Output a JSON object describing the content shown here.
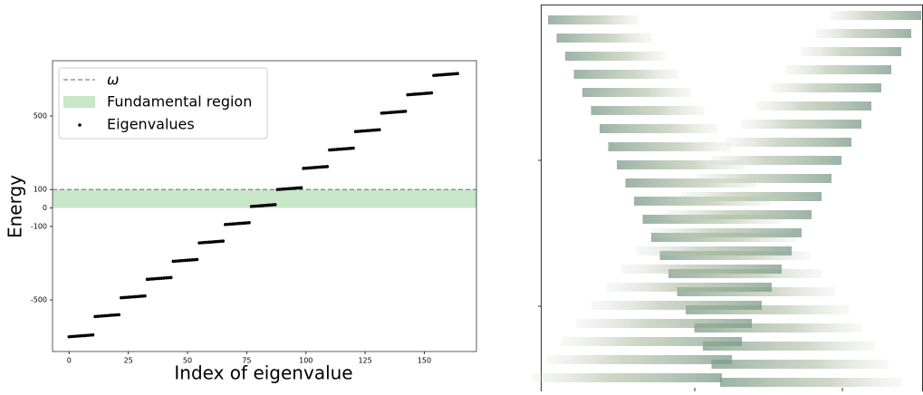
{
  "chart_data": {
    "type": "scatter",
    "xlabel": "Index of eigenvalue",
    "ylabel": "Energy",
    "x": [
      0,
      1,
      2,
      3,
      4,
      5,
      6,
      7,
      8,
      9,
      10,
      11,
      12,
      13,
      14,
      15,
      16,
      17,
      18,
      19,
      20,
      21,
      22,
      23,
      24,
      25,
      26,
      27,
      28,
      29,
      30,
      31,
      32,
      33,
      34,
      35,
      36,
      37,
      38,
      39,
      40,
      41,
      42,
      43,
      44,
      45,
      46,
      47,
      48,
      49,
      50,
      51,
      52,
      53,
      54,
      55,
      56,
      57,
      58,
      59,
      60,
      61,
      62,
      63,
      64,
      65,
      66,
      67,
      68,
      69,
      70,
      71,
      72,
      73,
      74,
      75,
      76,
      77,
      78,
      79,
      80,
      81,
      82,
      83,
      84,
      85,
      86,
      87,
      88,
      89,
      90,
      91,
      92,
      93,
      94,
      95,
      96,
      97,
      98,
      99,
      100,
      101,
      102,
      103,
      104,
      105,
      106,
      107,
      108,
      109,
      110,
      111,
      112,
      113,
      114,
      115,
      116,
      117,
      118,
      119,
      120,
      121,
      122,
      123,
      124,
      125,
      126,
      127,
      128,
      129,
      130,
      131,
      132,
      133,
      134,
      135,
      136,
      137,
      138,
      139,
      140,
      141,
      142,
      143,
      144,
      145,
      146,
      147,
      148,
      149,
      150,
      151,
      152,
      153,
      154,
      155,
      156,
      157,
      158,
      159,
      160,
      161,
      162,
      163,
      164
    ],
    "series": [
      {
        "name": "Eigenvalues",
        "color": "#000000",
        "values": [
          -700,
          -699,
          -698,
          -697,
          -696,
          -695,
          -694,
          -693,
          -692,
          -691,
          -690,
          -590,
          -589,
          -588,
          -587,
          -586,
          -585,
          -584,
          -583,
          -582,
          -581,
          -580,
          -488,
          -487,
          -486,
          -485,
          -484,
          -483,
          -482,
          -481,
          -480,
          -479,
          -478,
          -388,
          -387,
          -386,
          -385,
          -384,
          -383,
          -382,
          -381,
          -380,
          -379,
          -378,
          -290,
          -289,
          -288,
          -287,
          -286,
          -285,
          -284,
          -283,
          -282,
          -281,
          -280,
          -190,
          -189,
          -188,
          -187,
          -186,
          -185,
          -184,
          -183,
          -182,
          -181,
          -180,
          -90,
          -89,
          -88,
          -87,
          -86,
          -85,
          -84,
          -83,
          -82,
          -81,
          -80,
          8,
          9,
          10,
          11,
          12,
          13,
          14,
          15,
          16,
          17,
          18,
          100,
          101,
          102,
          103,
          104,
          105,
          106,
          107,
          108,
          109,
          110,
          215,
          216,
          217,
          218,
          219,
          220,
          221,
          222,
          223,
          224,
          225,
          315,
          316,
          317,
          318,
          319,
          320,
          321,
          322,
          323,
          324,
          325,
          415,
          416,
          417,
          418,
          419,
          420,
          421,
          422,
          423,
          424,
          425,
          515,
          516,
          517,
          518,
          519,
          520,
          521,
          522,
          523,
          524,
          525,
          615,
          616,
          617,
          618,
          619,
          620,
          621,
          622,
          623,
          624,
          625,
          720,
          721,
          722,
          723,
          724,
          725,
          726,
          727,
          728,
          729,
          730
        ]
      }
    ],
    "reference_line": {
      "label": "ω",
      "value": 100,
      "color": "#808080"
    },
    "shaded_region": {
      "label": "Fundamental region",
      "range": [
        0,
        100
      ],
      "color": "#c8e6c8"
    },
    "xlim": [
      -7,
      172
    ],
    "ylim": [
      -780,
      800
    ],
    "xticks": [
      0,
      25,
      50,
      75,
      100,
      125,
      150
    ],
    "yticks": [
      -500,
      -100,
      0,
      100,
      500
    ]
  }
}
